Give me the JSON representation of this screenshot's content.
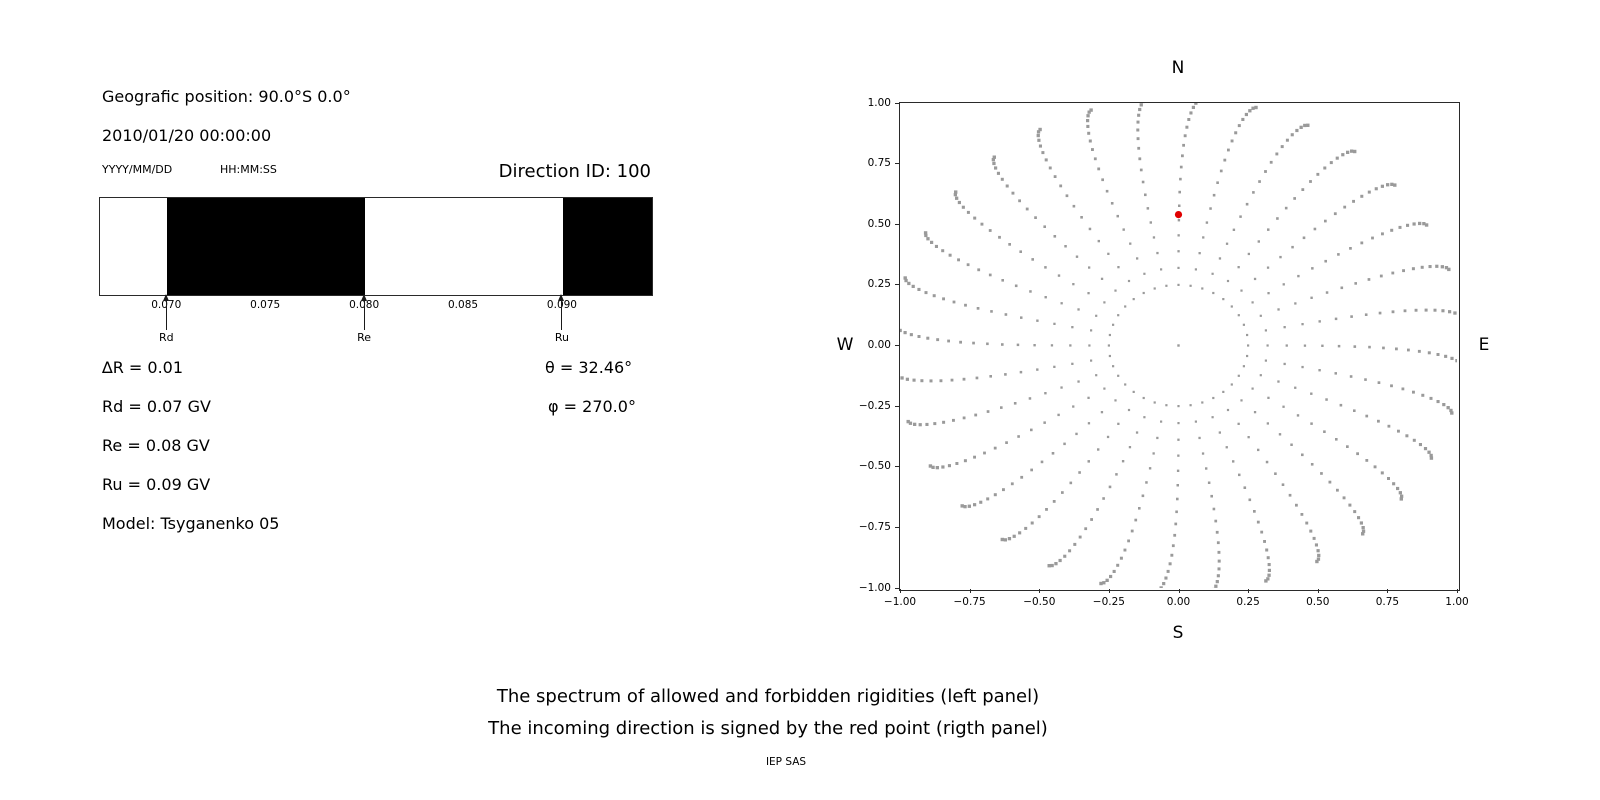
{
  "left_panel": {
    "geo_position": "Geografic position: 90.0°S 0.0°",
    "datetime": "2010/01/20 00:00:00",
    "date_format": "YYYY/MM/DD",
    "time_format": "HH:MM:SS",
    "direction_id": "Direction ID: 100",
    "delta_r": "∆R = 0.01",
    "rd": "Rd = 0.07 GV",
    "re": "Re = 0.08 GV",
    "ru": "Ru = 0.09 GV",
    "model": "Model: Tsyganenko 05",
    "theta": "θ = 32.46°",
    "phi": "φ = 270.0°"
  },
  "caption": {
    "line1": "The spectrum of allowed and forbidden rigidities (left panel)",
    "line2": "The incoming direction is signed by the red point (rigth panel)",
    "credit": "IEP SAS"
  },
  "chart_data": [
    {
      "type": "bar",
      "panel": "left",
      "xlim": [
        0.0666,
        0.0945
      ],
      "xticks": [
        0.07,
        0.075,
        0.08,
        0.085,
        0.09
      ],
      "xtick_labels": [
        "0.070",
        "0.075",
        "0.080",
        "0.085",
        "0.090"
      ],
      "allowed_color": "#ffffff",
      "forbidden_color": "#000000",
      "allowed_segments": [
        [
          0.0666,
          0.07
        ],
        [
          0.08,
          0.09
        ]
      ],
      "forbidden_segments": [
        [
          0.07,
          0.08
        ],
        [
          0.09,
          0.0945
        ]
      ],
      "markers": [
        {
          "value": 0.07,
          "label": "Rd"
        },
        {
          "value": 0.08,
          "label": "Re"
        },
        {
          "value": 0.09,
          "label": "Ru"
        }
      ]
    },
    {
      "type": "scatter",
      "panel": "right",
      "compass_labels": {
        "top": "N",
        "bottom": "S",
        "left": "W",
        "right": "E"
      },
      "xlim": [
        -1.0,
        1.0
      ],
      "ylim": [
        -1.0,
        1.0
      ],
      "xticks": [
        -1.0,
        -0.75,
        -0.5,
        -0.25,
        0.0,
        0.25,
        0.5,
        0.75,
        1.0
      ],
      "xtick_labels": [
        "−1.00",
        "−0.75",
        "−0.50",
        "−0.25",
        "0.00",
        "0.25",
        "0.50",
        "0.75",
        "1.00"
      ],
      "yticks": [
        1.0,
        0.75,
        0.5,
        0.25,
        0.0,
        -0.25,
        -0.5,
        -0.75,
        -1.0
      ],
      "ytick_labels": [
        "1.00",
        "0.75",
        "0.50",
        "0.25",
        "0.00",
        "−0.25",
        "−0.50",
        "−0.75",
        "−1.00"
      ],
      "grid": false,
      "dot_color": "#9a9a9a",
      "red_point": {
        "x": 0.0,
        "y": 0.54,
        "color": "#e00000"
      },
      "ray_pattern": {
        "num_rays": 32,
        "points_per_ray": 18,
        "r_start": 0.32,
        "r_end": 1.02,
        "outer_cluster_exponent": 1.7,
        "curl_rad": 0.08,
        "inner_ring_radius": 0.25,
        "inner_ring_points": 36,
        "center_dot": true
      }
    }
  ]
}
